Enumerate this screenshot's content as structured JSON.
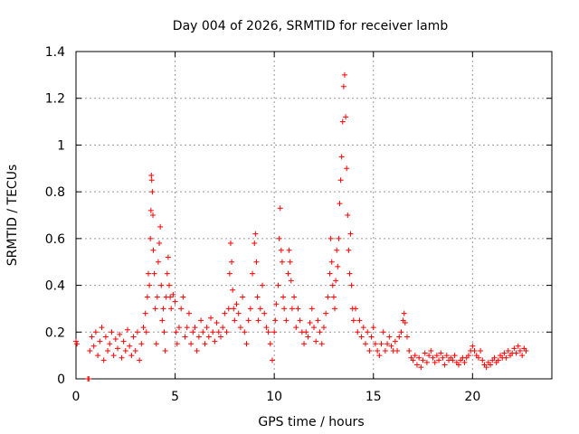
{
  "chart_data": {
    "type": "scatter",
    "title": "Day 004 of 2026, SRMTID for receiver lamb",
    "xlabel": "GPS time / hours",
    "ylabel": "SRMTID / TECUs",
    "xlim": [
      0,
      24
    ],
    "ylim": [
      0,
      1.4
    ],
    "xticks": [
      0,
      5,
      10,
      15,
      20
    ],
    "xtick_labels": [
      "0",
      "5",
      "10",
      "15",
      "20"
    ],
    "yticks": [
      0,
      0.2,
      0.4,
      0.6,
      0.8,
      1.0,
      1.2,
      1.4
    ],
    "ytick_labels": [
      "0",
      "0.2",
      "0.4",
      "0.6",
      "0.8",
      "1",
      "1.2",
      "1.4"
    ],
    "grid": true,
    "marker": "+",
    "color": "#ff0000",
    "series": [
      {
        "name": "SRMTID",
        "points": [
          [
            0.0,
            0.16
          ],
          [
            0.05,
            0.15
          ],
          [
            0.6,
            0.0
          ],
          [
            0.65,
            0.0
          ],
          [
            0.7,
            0.12
          ],
          [
            0.8,
            0.18
          ],
          [
            0.9,
            0.14
          ],
          [
            1.0,
            0.2
          ],
          [
            1.1,
            0.1
          ],
          [
            1.2,
            0.16
          ],
          [
            1.3,
            0.22
          ],
          [
            1.4,
            0.08
          ],
          [
            1.5,
            0.18
          ],
          [
            1.6,
            0.12
          ],
          [
            1.7,
            0.15
          ],
          [
            1.8,
            0.2
          ],
          [
            1.9,
            0.1
          ],
          [
            2.0,
            0.17
          ],
          [
            2.1,
            0.13
          ],
          [
            2.2,
            0.19
          ],
          [
            2.3,
            0.09
          ],
          [
            2.4,
            0.16
          ],
          [
            2.5,
            0.12
          ],
          [
            2.6,
            0.21
          ],
          [
            2.7,
            0.14
          ],
          [
            2.8,
            0.1
          ],
          [
            2.9,
            0.18
          ],
          [
            3.0,
            0.12
          ],
          [
            3.1,
            0.2
          ],
          [
            3.2,
            0.08
          ],
          [
            3.3,
            0.15
          ],
          [
            3.4,
            0.22
          ],
          [
            3.5,
            0.28
          ],
          [
            3.55,
            0.2
          ],
          [
            3.6,
            0.35
          ],
          [
            3.65,
            0.45
          ],
          [
            3.7,
            0.4
          ],
          [
            3.75,
            0.6
          ],
          [
            3.78,
            0.72
          ],
          [
            3.8,
            0.87
          ],
          [
            3.82,
            0.85
          ],
          [
            3.85,
            0.8
          ],
          [
            3.88,
            0.7
          ],
          [
            3.9,
            0.55
          ],
          [
            3.95,
            0.45
          ],
          [
            4.0,
            0.3
          ],
          [
            4.05,
            0.15
          ],
          [
            4.1,
            0.35
          ],
          [
            4.15,
            0.5
          ],
          [
            4.2,
            0.58
          ],
          [
            4.25,
            0.65
          ],
          [
            4.3,
            0.4
          ],
          [
            4.35,
            0.25
          ],
          [
            4.4,
            0.3
          ],
          [
            4.45,
            0.2
          ],
          [
            4.5,
            0.12
          ],
          [
            4.55,
            0.35
          ],
          [
            4.6,
            0.45
          ],
          [
            4.65,
            0.52
          ],
          [
            4.7,
            0.4
          ],
          [
            4.75,
            0.35
          ],
          [
            4.8,
            0.3
          ],
          [
            4.9,
            0.36
          ],
          [
            5.0,
            0.33
          ],
          [
            5.05,
            0.2
          ],
          [
            5.1,
            0.15
          ],
          [
            5.2,
            0.22
          ],
          [
            5.3,
            0.3
          ],
          [
            5.4,
            0.35
          ],
          [
            5.5,
            0.18
          ],
          [
            5.6,
            0.22
          ],
          [
            5.7,
            0.28
          ],
          [
            5.8,
            0.15
          ],
          [
            5.9,
            0.2
          ],
          [
            6.0,
            0.22
          ],
          [
            6.1,
            0.12
          ],
          [
            6.2,
            0.18
          ],
          [
            6.3,
            0.25
          ],
          [
            6.4,
            0.2
          ],
          [
            6.5,
            0.15
          ],
          [
            6.6,
            0.22
          ],
          [
            6.7,
            0.18
          ],
          [
            6.8,
            0.26
          ],
          [
            6.9,
            0.2
          ],
          [
            7.0,
            0.16
          ],
          [
            7.1,
            0.24
          ],
          [
            7.2,
            0.2
          ],
          [
            7.3,
            0.18
          ],
          [
            7.4,
            0.22
          ],
          [
            7.5,
            0.28
          ],
          [
            7.6,
            0.2
          ],
          [
            7.7,
            0.3
          ],
          [
            7.75,
            0.45
          ],
          [
            7.8,
            0.58
          ],
          [
            7.85,
            0.5
          ],
          [
            7.9,
            0.38
          ],
          [
            7.95,
            0.3
          ],
          [
            8.0,
            0.25
          ],
          [
            8.1,
            0.32
          ],
          [
            8.2,
            0.28
          ],
          [
            8.3,
            0.22
          ],
          [
            8.4,
            0.35
          ],
          [
            8.5,
            0.2
          ],
          [
            8.6,
            0.15
          ],
          [
            8.7,
            0.25
          ],
          [
            8.8,
            0.3
          ],
          [
            8.9,
            0.45
          ],
          [
            9.0,
            0.58
          ],
          [
            9.05,
            0.62
          ],
          [
            9.1,
            0.5
          ],
          [
            9.15,
            0.35
          ],
          [
            9.2,
            0.25
          ],
          [
            9.3,
            0.3
          ],
          [
            9.4,
            0.4
          ],
          [
            9.5,
            0.28
          ],
          [
            9.6,
            0.22
          ],
          [
            9.7,
            0.2
          ],
          [
            9.8,
            0.15
          ],
          [
            9.9,
            0.08
          ],
          [
            10.0,
            0.2
          ],
          [
            10.05,
            0.25
          ],
          [
            10.1,
            0.32
          ],
          [
            10.2,
            0.4
          ],
          [
            10.25,
            0.6
          ],
          [
            10.3,
            0.73
          ],
          [
            10.35,
            0.55
          ],
          [
            10.4,
            0.5
          ],
          [
            10.45,
            0.35
          ],
          [
            10.5,
            0.3
          ],
          [
            10.6,
            0.25
          ],
          [
            10.7,
            0.45
          ],
          [
            10.75,
            0.55
          ],
          [
            10.8,
            0.5
          ],
          [
            10.85,
            0.42
          ],
          [
            10.9,
            0.3
          ],
          [
            11.0,
            0.35
          ],
          [
            11.1,
            0.22
          ],
          [
            11.2,
            0.3
          ],
          [
            11.3,
            0.25
          ],
          [
            11.4,
            0.2
          ],
          [
            11.5,
            0.15
          ],
          [
            11.6,
            0.2
          ],
          [
            11.7,
            0.18
          ],
          [
            11.8,
            0.24
          ],
          [
            11.9,
            0.3
          ],
          [
            12.0,
            0.22
          ],
          [
            12.1,
            0.16
          ],
          [
            12.2,
            0.25
          ],
          [
            12.3,
            0.2
          ],
          [
            12.4,
            0.15
          ],
          [
            12.5,
            0.22
          ],
          [
            12.6,
            0.28
          ],
          [
            12.7,
            0.35
          ],
          [
            12.8,
            0.45
          ],
          [
            12.85,
            0.6
          ],
          [
            12.9,
            0.5
          ],
          [
            12.95,
            0.4
          ],
          [
            13.0,
            0.35
          ],
          [
            13.05,
            0.3
          ],
          [
            13.1,
            0.42
          ],
          [
            13.15,
            0.55
          ],
          [
            13.2,
            0.48
          ],
          [
            13.25,
            0.6
          ],
          [
            13.3,
            0.75
          ],
          [
            13.35,
            0.85
          ],
          [
            13.4,
            0.95
          ],
          [
            13.45,
            1.1
          ],
          [
            13.5,
            1.25
          ],
          [
            13.55,
            1.3
          ],
          [
            13.6,
            1.12
          ],
          [
            13.65,
            0.9
          ],
          [
            13.7,
            0.7
          ],
          [
            13.75,
            0.55
          ],
          [
            13.8,
            0.45
          ],
          [
            13.85,
            0.62
          ],
          [
            13.9,
            0.4
          ],
          [
            13.95,
            0.3
          ],
          [
            14.0,
            0.25
          ],
          [
            14.1,
            0.3
          ],
          [
            14.2,
            0.2
          ],
          [
            14.3,
            0.25
          ],
          [
            14.4,
            0.18
          ],
          [
            14.5,
            0.22
          ],
          [
            14.6,
            0.15
          ],
          [
            14.7,
            0.2
          ],
          [
            14.8,
            0.12
          ],
          [
            14.9,
            0.18
          ],
          [
            15.0,
            0.22
          ],
          [
            15.1,
            0.15
          ],
          [
            15.2,
            0.12
          ],
          [
            15.3,
            0.1
          ],
          [
            15.4,
            0.15
          ],
          [
            15.5,
            0.2
          ],
          [
            15.6,
            0.12
          ],
          [
            15.7,
            0.15
          ],
          [
            15.8,
            0.18
          ],
          [
            15.9,
            0.14
          ],
          [
            16.0,
            0.12
          ],
          [
            16.1,
            0.16
          ],
          [
            16.2,
            0.12
          ],
          [
            16.3,
            0.18
          ],
          [
            16.4,
            0.2
          ],
          [
            16.5,
            0.25
          ],
          [
            16.55,
            0.28
          ],
          [
            16.6,
            0.24
          ],
          [
            16.7,
            0.18
          ],
          [
            16.8,
            0.12
          ],
          [
            16.9,
            0.09
          ],
          [
            17.0,
            0.08
          ],
          [
            17.1,
            0.1
          ],
          [
            17.2,
            0.06
          ],
          [
            17.3,
            0.09
          ],
          [
            17.4,
            0.05
          ],
          [
            17.5,
            0.08
          ],
          [
            17.6,
            0.11
          ],
          [
            17.7,
            0.07
          ],
          [
            17.8,
            0.1
          ],
          [
            17.9,
            0.12
          ],
          [
            18.0,
            0.09
          ],
          [
            18.1,
            0.07
          ],
          [
            18.2,
            0.1
          ],
          [
            18.3,
            0.08
          ],
          [
            18.4,
            0.11
          ],
          [
            18.5,
            0.09
          ],
          [
            18.6,
            0.06
          ],
          [
            18.7,
            0.1
          ],
          [
            18.8,
            0.08
          ],
          [
            18.9,
            0.09
          ],
          [
            19.0,
            0.08
          ],
          [
            19.1,
            0.1
          ],
          [
            19.2,
            0.07
          ],
          [
            19.3,
            0.06
          ],
          [
            19.4,
            0.08
          ],
          [
            19.5,
            0.09
          ],
          [
            19.6,
            0.07
          ],
          [
            19.7,
            0.09
          ],
          [
            19.8,
            0.1
          ],
          [
            19.9,
            0.12
          ],
          [
            20.0,
            0.14
          ],
          [
            20.1,
            0.12
          ],
          [
            20.2,
            0.1
          ],
          [
            20.3,
            0.09
          ],
          [
            20.4,
            0.12
          ],
          [
            20.5,
            0.08
          ],
          [
            20.6,
            0.06
          ],
          [
            20.7,
            0.05
          ],
          [
            20.8,
            0.07
          ],
          [
            20.9,
            0.06
          ],
          [
            21.0,
            0.08
          ],
          [
            21.1,
            0.09
          ],
          [
            21.2,
            0.07
          ],
          [
            21.3,
            0.08
          ],
          [
            21.4,
            0.1
          ],
          [
            21.5,
            0.09
          ],
          [
            21.6,
            0.11
          ],
          [
            21.7,
            0.09
          ],
          [
            21.8,
            0.12
          ],
          [
            21.9,
            0.1
          ],
          [
            22.0,
            0.11
          ],
          [
            22.1,
            0.13
          ],
          [
            22.2,
            0.11
          ],
          [
            22.3,
            0.14
          ],
          [
            22.4,
            0.12
          ],
          [
            22.5,
            0.1
          ],
          [
            22.6,
            0.13
          ],
          [
            22.7,
            0.12
          ]
        ]
      }
    ]
  }
}
